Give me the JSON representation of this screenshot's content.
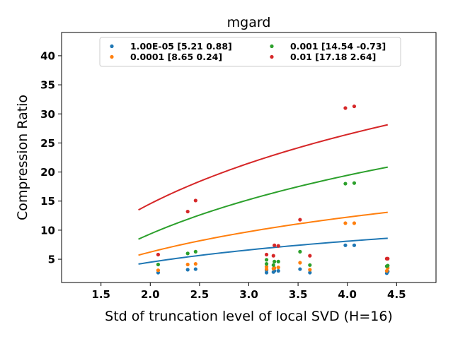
{
  "chart_data": {
    "type": "scatter",
    "title": "mgard",
    "xlabel": "Std of truncation level of local SVD (H=16)",
    "ylabel": "Compression Ratio",
    "xlim": [
      1.1,
      4.9
    ],
    "ylim": [
      1.0,
      44.0
    ],
    "xticks": [
      1.5,
      2.0,
      2.5,
      3.0,
      3.5,
      4.0,
      4.5
    ],
    "xtick_labels": [
      "1.5",
      "2.0",
      "2.5",
      "3.0",
      "3.5",
      "4.0",
      "4.5"
    ],
    "yticks": [
      5,
      10,
      15,
      20,
      25,
      30,
      35,
      40
    ],
    "ytick_labels": [
      "5",
      "10",
      "15",
      "20",
      "25",
      "30",
      "35",
      "40"
    ],
    "grid": false,
    "legend_position": "top-center",
    "legend_columns": 2,
    "fit_x_range": [
      1.88,
      4.41
    ],
    "series": [
      {
        "name": "1.00E-05 [5.21 0.88]",
        "color": "#1f77b4",
        "a": 5.21,
        "b": 0.88,
        "points": [
          [
            2.08,
            2.7
          ],
          [
            2.38,
            3.2
          ],
          [
            2.46,
            3.3
          ],
          [
            3.18,
            2.7
          ],
          [
            3.18,
            3.1
          ],
          [
            3.25,
            2.8
          ],
          [
            3.26,
            3.0
          ],
          [
            3.3,
            3.0
          ],
          [
            3.52,
            3.3
          ],
          [
            3.62,
            2.7
          ],
          [
            3.98,
            7.4
          ],
          [
            4.07,
            7.4
          ],
          [
            4.4,
            2.6
          ],
          [
            4.41,
            2.9
          ]
        ]
      },
      {
        "name": "0.0001 [8.65 0.24]",
        "color": "#ff7f0e",
        "a": 8.65,
        "b": 0.24,
        "points": [
          [
            2.08,
            3.1
          ],
          [
            2.38,
            4.1
          ],
          [
            2.46,
            4.2
          ],
          [
            3.18,
            3.3
          ],
          [
            3.18,
            3.7
          ],
          [
            3.25,
            3.4
          ],
          [
            3.26,
            3.5
          ],
          [
            3.3,
            3.6
          ],
          [
            3.52,
            4.4
          ],
          [
            3.62,
            3.2
          ],
          [
            3.98,
            11.2
          ],
          [
            4.07,
            11.2
          ],
          [
            4.4,
            3.0
          ],
          [
            4.41,
            3.5
          ]
        ]
      },
      {
        "name": "0.001 [14.54 -0.73]",
        "color": "#2ca02c",
        "a": 14.54,
        "b": -0.73,
        "points": [
          [
            2.08,
            4.1
          ],
          [
            2.38,
            6.0
          ],
          [
            2.46,
            6.3
          ],
          [
            3.18,
            4.2
          ],
          [
            3.18,
            4.9
          ],
          [
            3.25,
            4.0
          ],
          [
            3.26,
            4.6
          ],
          [
            3.3,
            4.6
          ],
          [
            3.52,
            6.3
          ],
          [
            3.62,
            4.0
          ],
          [
            3.98,
            18.0
          ],
          [
            4.07,
            18.1
          ],
          [
            4.4,
            3.8
          ],
          [
            4.41,
            3.9
          ]
        ]
      },
      {
        "name": "0.01 [17.18  2.64]",
        "color": "#d62728",
        "a": 17.18,
        "b": 2.64,
        "points": [
          [
            2.08,
            5.8
          ],
          [
            2.38,
            13.2
          ],
          [
            2.46,
            15.1
          ],
          [
            3.18,
            5.8
          ],
          [
            3.25,
            5.6
          ],
          [
            3.26,
            7.4
          ],
          [
            3.3,
            7.3
          ],
          [
            3.52,
            11.8
          ],
          [
            3.62,
            5.6
          ],
          [
            3.98,
            31.0
          ],
          [
            4.07,
            31.3
          ],
          [
            4.4,
            5.1
          ],
          [
            4.41,
            5.1
          ]
        ]
      }
    ]
  }
}
